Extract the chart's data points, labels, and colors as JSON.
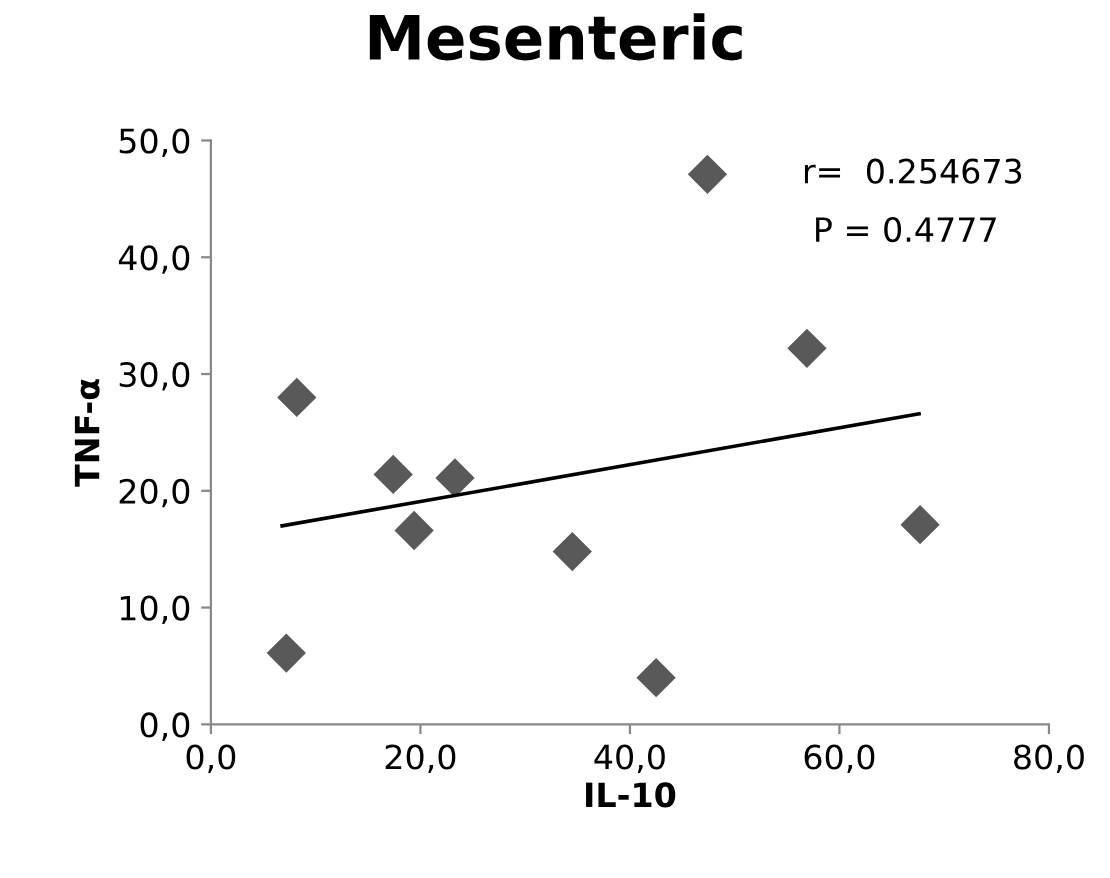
{
  "chart_data": {
    "type": "scatter",
    "title": "Mesenteric",
    "xlabel": "IL-10",
    "ylabel": "TNF-α",
    "xlim": [
      0,
      80
    ],
    "xticks": [
      {
        "value": 0,
        "label": "0,0"
      },
      {
        "value": 20,
        "label": "20,0"
      },
      {
        "value": 40,
        "label": "40,0"
      },
      {
        "value": 60,
        "label": "60,0"
      },
      {
        "value": 80,
        "label": "80,0"
      }
    ],
    "ylim": [
      0,
      50
    ],
    "yticks": [
      {
        "value": 0,
        "label": "0,0"
      },
      {
        "value": 10,
        "label": "10,0"
      },
      {
        "value": 20,
        "label": "20,0"
      },
      {
        "value": 30,
        "label": "30,0"
      },
      {
        "value": 40,
        "label": "40,0"
      },
      {
        "value": 50,
        "label": "50,0"
      }
    ],
    "grid": false,
    "legend": false,
    "marker": "diamond",
    "series": [
      {
        "color": "#595959",
        "x": [
          7.2,
          8.2,
          17.4,
          19.4,
          23.3,
          34.5,
          42.5,
          47.4,
          56.9,
          67.7
        ],
        "values": [
          6.1,
          28.0,
          21.4,
          16.6,
          21.1,
          14.8,
          4.0,
          47.1,
          32.2,
          17.1
        ]
      },
      {
        "type": "line",
        "marker": "none",
        "color": "#000000",
        "x": [
          6.8,
          67.6
        ],
        "values": [
          17.0,
          26.6
        ]
      }
    ],
    "annotations": [
      "r=  0.254673",
      "P = 0.4777"
    ]
  }
}
